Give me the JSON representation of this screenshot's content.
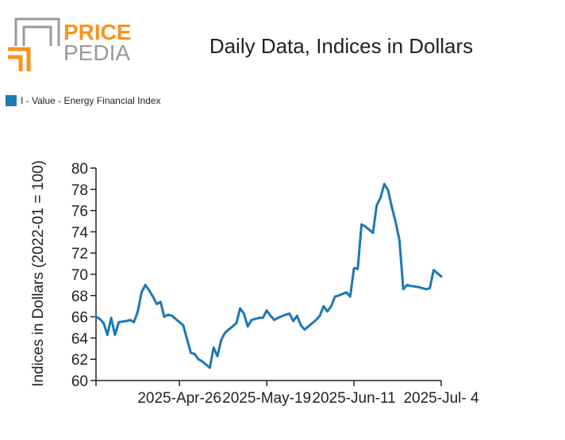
{
  "logo": {
    "top": "PRICE",
    "bottom": "PEDIA"
  },
  "colors": {
    "series": "#1f77b4",
    "logo_orange": "#f7941d",
    "logo_gray": "#999999",
    "axis": "#222222"
  },
  "chart_data": {
    "type": "line",
    "title": "Daily Data, Indices in Dollars",
    "ylabel": "Indices in Dollars (2022-01 = 100)",
    "xlabel": "",
    "ylim": [
      60,
      80
    ],
    "yticks": [
      60,
      62,
      64,
      66,
      68,
      70,
      72,
      74,
      76,
      78,
      80
    ],
    "xlim": [
      "2025-04-04",
      "2025-07-04"
    ],
    "xticks": [
      {
        "date": "2025-04-04",
        "label": ""
      },
      {
        "date": "2025-04-26",
        "label": "2025-Apr-26"
      },
      {
        "date": "2025-05-19",
        "label": "2025-May-19"
      },
      {
        "date": "2025-06-11",
        "label": "2025-Jun-11"
      },
      {
        "date": "2025-07-04",
        "label": "2025-Jul- 4"
      }
    ],
    "legend": {
      "placement": "top-left"
    },
    "grid": false,
    "series": [
      {
        "name": "I - Value - Energy Financial Index",
        "points": [
          [
            "2025-04-04",
            66.0
          ],
          [
            "2025-04-05",
            65.8
          ],
          [
            "2025-04-06",
            65.4
          ],
          [
            "2025-04-07",
            64.3
          ],
          [
            "2025-04-08",
            65.9
          ],
          [
            "2025-04-09",
            64.3
          ],
          [
            "2025-04-10",
            65.5
          ],
          [
            "2025-04-12",
            65.6
          ],
          [
            "2025-04-13",
            65.7
          ],
          [
            "2025-04-14",
            65.5
          ],
          [
            "2025-04-15",
            66.5
          ],
          [
            "2025-04-16",
            68.3
          ],
          [
            "2025-04-17",
            69.0
          ],
          [
            "2025-04-18",
            68.5
          ],
          [
            "2025-04-19",
            67.9
          ],
          [
            "2025-04-20",
            67.2
          ],
          [
            "2025-04-21",
            67.4
          ],
          [
            "2025-04-22",
            66.0
          ],
          [
            "2025-04-23",
            66.2
          ],
          [
            "2025-04-24",
            66.1
          ],
          [
            "2025-04-25",
            65.8
          ],
          [
            "2025-04-26",
            65.5
          ],
          [
            "2025-04-27",
            65.2
          ],
          [
            "2025-04-28",
            63.9
          ],
          [
            "2025-04-29",
            62.6
          ],
          [
            "2025-04-30",
            62.5
          ],
          [
            "2025-05-01",
            62.0
          ],
          [
            "2025-05-02",
            61.8
          ],
          [
            "2025-05-03",
            61.5
          ],
          [
            "2025-05-04",
            61.2
          ],
          [
            "2025-05-05",
            63.1
          ],
          [
            "2025-05-06",
            62.3
          ],
          [
            "2025-05-07",
            63.8
          ],
          [
            "2025-05-08",
            64.5
          ],
          [
            "2025-05-10",
            65.1
          ],
          [
            "2025-05-11",
            65.4
          ],
          [
            "2025-05-12",
            66.8
          ],
          [
            "2025-05-13",
            66.3
          ],
          [
            "2025-05-14",
            65.1
          ],
          [
            "2025-05-15",
            65.7
          ],
          [
            "2025-05-17",
            65.9
          ],
          [
            "2025-05-18",
            65.9
          ],
          [
            "2025-05-19",
            66.6
          ],
          [
            "2025-05-20",
            66.1
          ],
          [
            "2025-05-21",
            65.7
          ],
          [
            "2025-05-22",
            65.9
          ],
          [
            "2025-05-24",
            66.2
          ],
          [
            "2025-05-25",
            66.3
          ],
          [
            "2025-05-26",
            65.6
          ],
          [
            "2025-05-27",
            66.1
          ],
          [
            "2025-05-28",
            65.2
          ],
          [
            "2025-05-29",
            64.8
          ],
          [
            "2025-05-30",
            65.1
          ],
          [
            "2025-06-01",
            65.7
          ],
          [
            "2025-06-02",
            66.1
          ],
          [
            "2025-06-03",
            67.0
          ],
          [
            "2025-06-04",
            66.5
          ],
          [
            "2025-06-05",
            67.0
          ],
          [
            "2025-06-06",
            67.9
          ],
          [
            "2025-06-07",
            68.0
          ],
          [
            "2025-06-09",
            68.3
          ],
          [
            "2025-06-10",
            67.9
          ],
          [
            "2025-06-11",
            70.6
          ],
          [
            "2025-06-12",
            70.5
          ],
          [
            "2025-06-13",
            74.7
          ],
          [
            "2025-06-14",
            74.5
          ],
          [
            "2025-06-16",
            73.9
          ],
          [
            "2025-06-17",
            76.5
          ],
          [
            "2025-06-18",
            77.2
          ],
          [
            "2025-06-19",
            78.5
          ],
          [
            "2025-06-20",
            77.9
          ],
          [
            "2025-06-21",
            76.3
          ],
          [
            "2025-06-22",
            74.9
          ],
          [
            "2025-06-23",
            73.2
          ],
          [
            "2025-06-24",
            68.6
          ],
          [
            "2025-06-25",
            69.0
          ],
          [
            "2025-06-26",
            68.9
          ],
          [
            "2025-06-28",
            68.8
          ],
          [
            "2025-06-30",
            68.6
          ],
          [
            "2025-07-01",
            68.7
          ],
          [
            "2025-07-02",
            70.4
          ],
          [
            "2025-07-04",
            69.8
          ]
        ]
      }
    ]
  }
}
